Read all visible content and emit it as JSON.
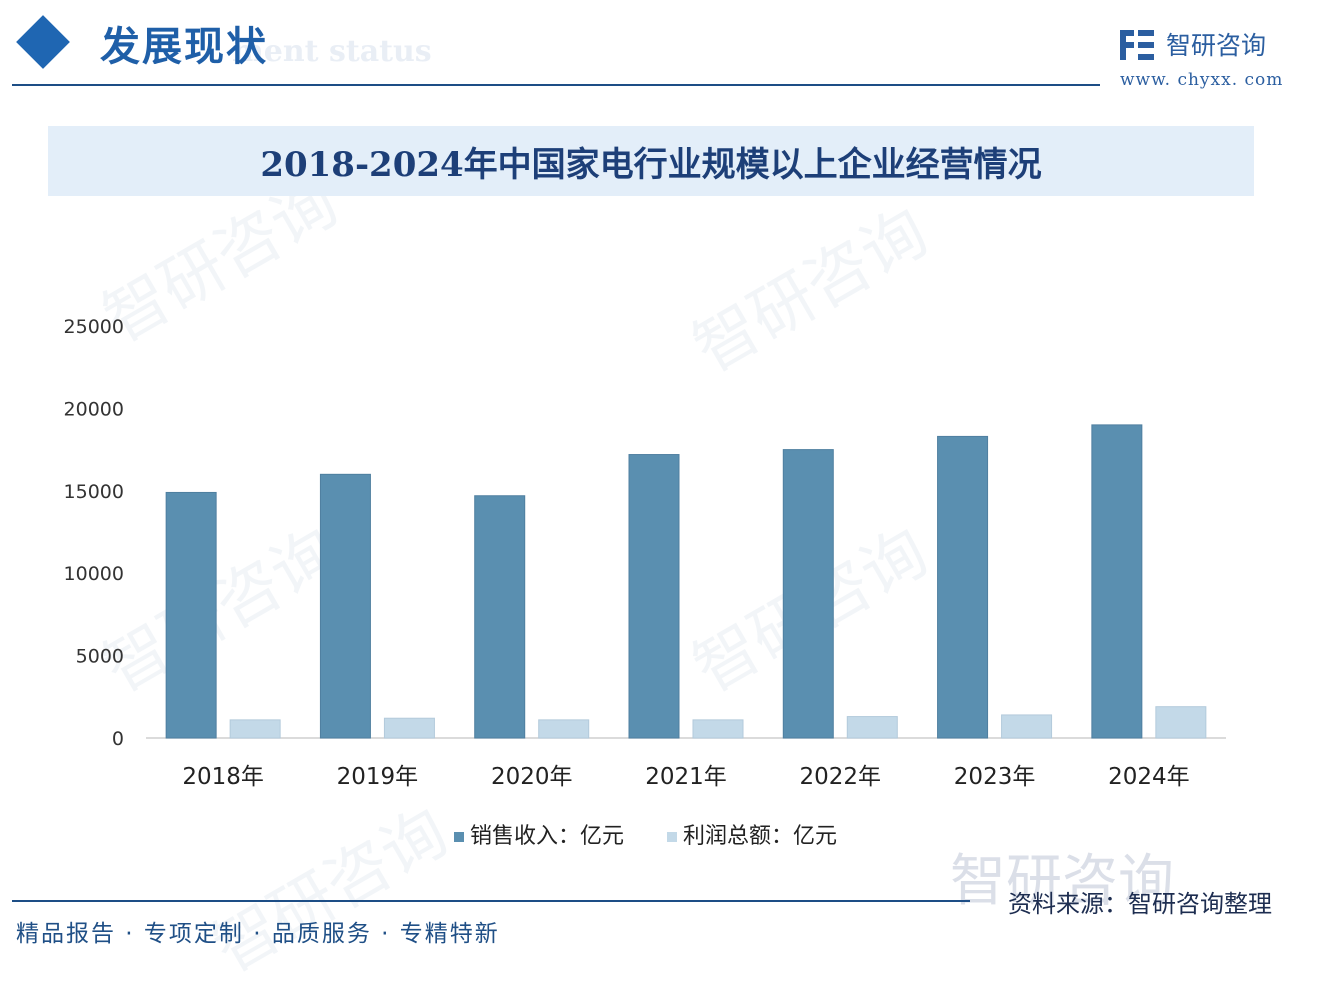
{
  "header": {
    "title": "发展现状",
    "subtitle": "ment status"
  },
  "brand": {
    "name": "智研咨询",
    "url": "www. chyxx. com"
  },
  "colors": {
    "accent": "#1f66b2",
    "series_sales": "#5a8fb0",
    "series_profit": "#c3d9e8"
  },
  "chart_data": {
    "type": "bar",
    "title": "2018-2024年中国家电行业规模以上企业经营情况",
    "categories": [
      "2018年",
      "2019年",
      "2020年",
      "2021年",
      "2022年",
      "2023年",
      "2024年"
    ],
    "series": [
      {
        "name": "销售收入：亿元",
        "values": [
          14900,
          16000,
          14700,
          17200,
          17500,
          18300,
          19000
        ]
      },
      {
        "name": "利润总额：亿元",
        "values": [
          1100,
          1200,
          1100,
          1100,
          1300,
          1400,
          1900
        ]
      }
    ],
    "ylim": [
      0,
      25000
    ],
    "yticks": [
      "0",
      "5000",
      "10000",
      "15000",
      "20000",
      "25000"
    ],
    "grid": false,
    "legend": "bottom"
  },
  "footer": {
    "slogan": "精品报告 · 专项定制 · 品质服务 · 专精特新",
    "source": "资料来源：智研咨询整理",
    "watermark": "智研咨询"
  }
}
